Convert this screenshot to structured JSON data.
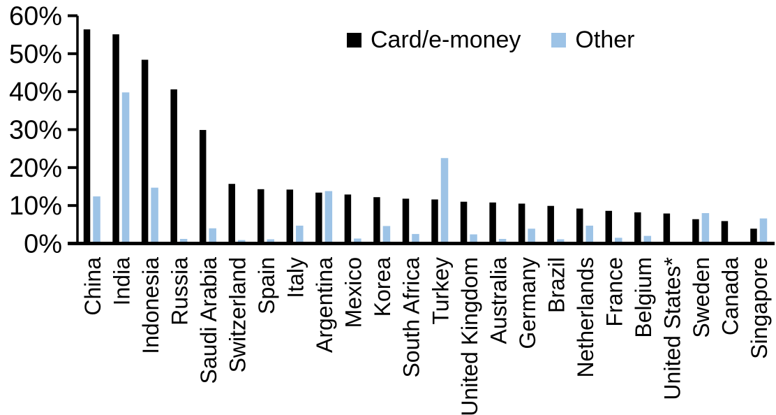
{
  "chart_data": {
    "type": "bar",
    "title": "",
    "categories": [
      "China",
      "India",
      "Indonesia",
      "Russia",
      "Saudi Arabia",
      "Switzerland",
      "Spain",
      "Italy",
      "Argentina",
      "Mexico",
      "Korea",
      "South Africa",
      "Turkey",
      "United Kingdom",
      "Australia",
      "Germany",
      "Brazil",
      "Netherlands",
      "France",
      "Belgium",
      "United States*",
      "Sweden",
      "Canada",
      "Singapore"
    ],
    "series": [
      {
        "name": "Card/e-money",
        "color": "#000000",
        "values": [
          56.4,
          55.1,
          48.4,
          40.6,
          29.9,
          15.7,
          14.3,
          14.2,
          13.4,
          12.9,
          12.2,
          11.8,
          11.6,
          11.0,
          10.8,
          10.5,
          9.9,
          9.2,
          8.6,
          8.2,
          7.9,
          6.4,
          5.9,
          3.9
        ]
      },
      {
        "name": "Other",
        "color": "#9DC3E6",
        "values": [
          12.4,
          39.8,
          14.7,
          1.2,
          4.0,
          0.9,
          1.1,
          4.7,
          13.8,
          1.3,
          4.6,
          2.5,
          22.5,
          2.4,
          1.2,
          3.9,
          1.1,
          4.7,
          1.5,
          2.0,
          0.3,
          8.0,
          0.0,
          6.6
        ]
      }
    ],
    "y_axis": {
      "min": 0,
      "max": 60,
      "tick_step": 10,
      "unit": "%",
      "tick_labels": [
        "0%",
        "10%",
        "20%",
        "30%",
        "40%",
        "50%",
        "60%"
      ]
    },
    "x_axis": {
      "label_rotation": -90
    },
    "legend_position": "top-center",
    "grid": false,
    "axis_color": "#000000",
    "background_color": "#FFFFFF"
  }
}
